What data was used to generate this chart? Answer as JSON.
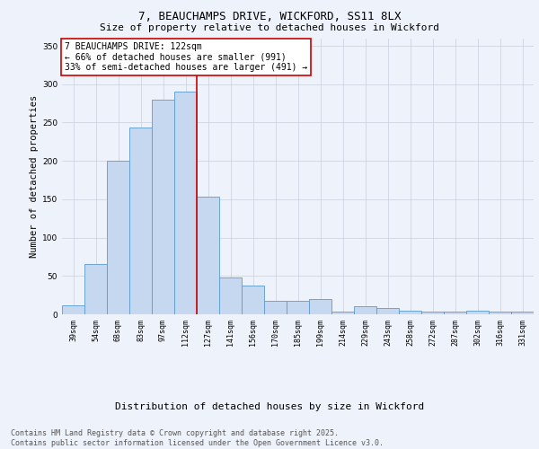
{
  "title1": "7, BEAUCHAMPS DRIVE, WICKFORD, SS11 8LX",
  "title2": "Size of property relative to detached houses in Wickford",
  "xlabel": "Distribution of detached houses by size in Wickford",
  "ylabel": "Number of detached properties",
  "categories": [
    "39sqm",
    "54sqm",
    "68sqm",
    "83sqm",
    "97sqm",
    "112sqm",
    "127sqm",
    "141sqm",
    "156sqm",
    "170sqm",
    "185sqm",
    "199sqm",
    "214sqm",
    "229sqm",
    "243sqm",
    "258sqm",
    "272sqm",
    "287sqm",
    "302sqm",
    "316sqm",
    "331sqm"
  ],
  "values": [
    12,
    65,
    200,
    243,
    280,
    290,
    153,
    48,
    37,
    18,
    18,
    20,
    3,
    10,
    8,
    5,
    3,
    3,
    5,
    3,
    3
  ],
  "bar_color": "#c5d8f0",
  "bar_edge_color": "#5b9bd5",
  "vline_x": 5.5,
  "vline_color": "#cc0000",
  "annotation_text": "7 BEAUCHAMPS DRIVE: 122sqm\n← 66% of detached houses are smaller (991)\n33% of semi-detached houses are larger (491) →",
  "annotation_box_color": "#ffffff",
  "annotation_box_edge": "#cc0000",
  "ylim": [
    0,
    360
  ],
  "yticks": [
    0,
    50,
    100,
    150,
    200,
    250,
    300,
    350
  ],
  "footer": "Contains HM Land Registry data © Crown copyright and database right 2025.\nContains public sector information licensed under the Open Government Licence v3.0.",
  "bg_color": "#eef2fa",
  "title_fontsize": 9,
  "subtitle_fontsize": 8,
  "ylabel_fontsize": 7.5,
  "xlabel_fontsize": 8,
  "tick_fontsize": 6,
  "annotation_fontsize": 7,
  "footer_fontsize": 6
}
